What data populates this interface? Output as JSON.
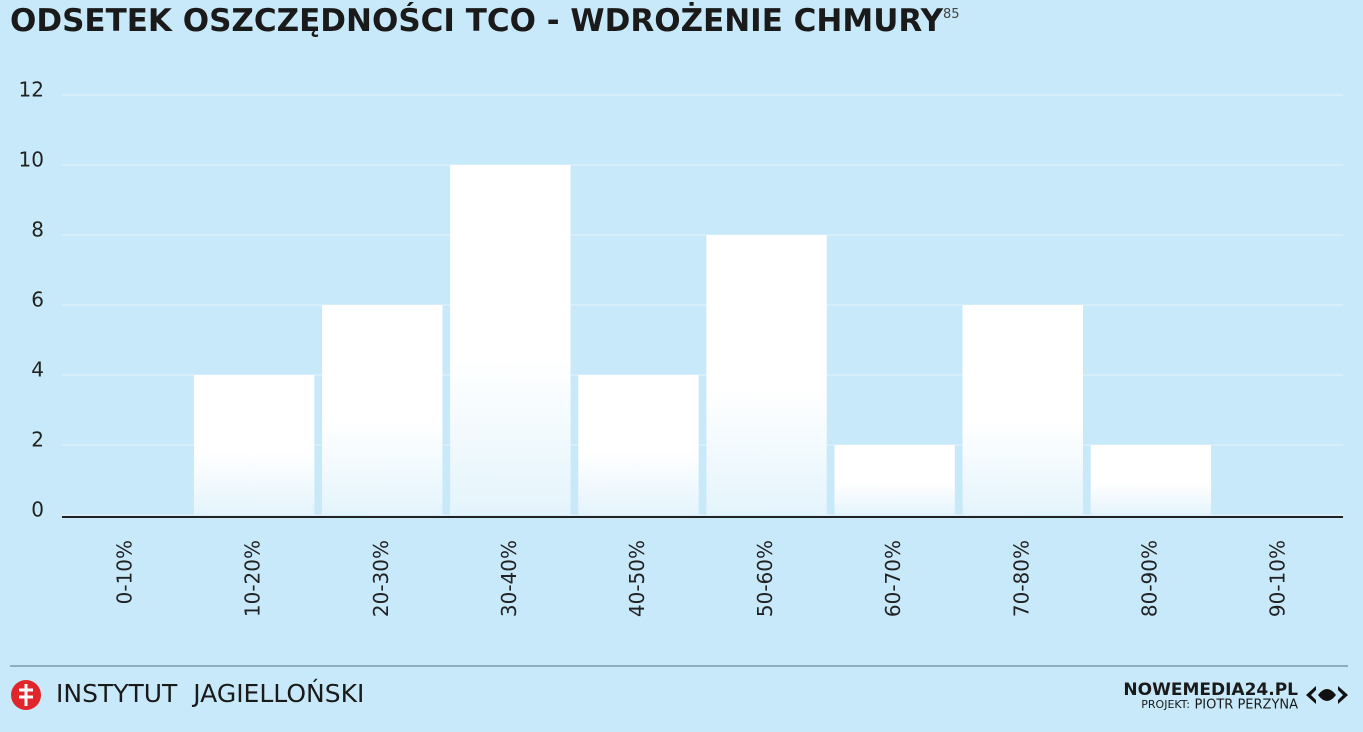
{
  "chart_data": {
    "type": "bar",
    "title": "ODSETEK OSZCZĘDNOŚCI TCO - WDROŻENIE CHMURY",
    "title_note": "85",
    "categories": [
      "0-10%",
      "10-20%",
      "20-30%",
      "30-40%",
      "40-50%",
      "50-60%",
      "60-70%",
      "70-80%",
      "80-90%",
      "90-10%"
    ],
    "values": [
      0,
      4,
      6,
      10,
      4,
      8,
      2,
      6,
      2,
      0
    ],
    "color": "#ffffff",
    "ylim": [
      0,
      12
    ],
    "yticks": [
      0,
      2,
      4,
      6,
      8,
      10,
      12
    ],
    "grid": true
  },
  "footer": {
    "left": "INSTYTUT  JAGIELLOŃSKI",
    "brand": "NOWEMEDIA24.PL",
    "project_label": "PROJEKT:",
    "author": "PIOTR PERZYNA"
  }
}
